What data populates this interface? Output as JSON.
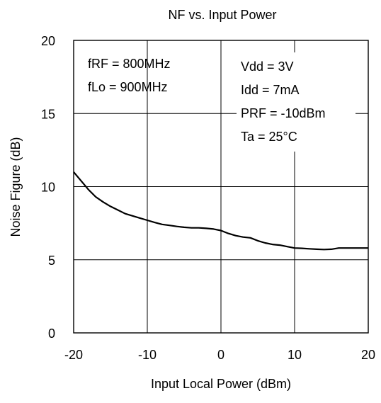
{
  "chart_data": {
    "type": "line",
    "title": "NF vs. Input Power",
    "xlabel": "Input Local Power (dBm)",
    "ylabel": "Noise Figure (dB)",
    "xlim": [
      -20,
      20
    ],
    "ylim": [
      0,
      20
    ],
    "x_ticks": [
      -20,
      -10,
      0,
      10,
      20
    ],
    "y_ticks": [
      0,
      5,
      10,
      15,
      20
    ],
    "x_tick_labels": [
      "-20",
      "-10",
      "0",
      "10",
      "20"
    ],
    "y_tick_labels": [
      "0",
      "5",
      "10",
      "15",
      "20"
    ],
    "grid": true,
    "annotations_left": [
      "fRF = 800MHz",
      "fLo = 900MHz"
    ],
    "annotations_right": [
      "Vdd = 3V",
      "Idd = 7mA",
      "PRF = -10dBm",
      "Ta = 25°C"
    ],
    "series": [
      {
        "x": [
          -20,
          -19,
          -18,
          -17,
          -16,
          -15,
          -14,
          -13,
          -12,
          -11,
          -10,
          -9,
          -8,
          -7,
          -6,
          -5,
          -4,
          -3,
          -2,
          -1,
          0,
          1,
          2,
          3,
          4,
          5,
          6,
          7,
          8,
          9,
          10,
          11,
          12,
          13,
          14,
          15,
          16,
          17,
          18,
          19,
          20
        ],
        "values": [
          11.0,
          10.4,
          9.8,
          9.3,
          8.95,
          8.65,
          8.4,
          8.15,
          8.0,
          7.85,
          7.7,
          7.55,
          7.42,
          7.35,
          7.28,
          7.22,
          7.18,
          7.18,
          7.15,
          7.1,
          7.0,
          6.8,
          6.65,
          6.55,
          6.5,
          6.3,
          6.15,
          6.05,
          6.0,
          5.9,
          5.8,
          5.78,
          5.75,
          5.72,
          5.7,
          5.72,
          5.8,
          5.8,
          5.8,
          5.8,
          5.8
        ]
      }
    ]
  }
}
